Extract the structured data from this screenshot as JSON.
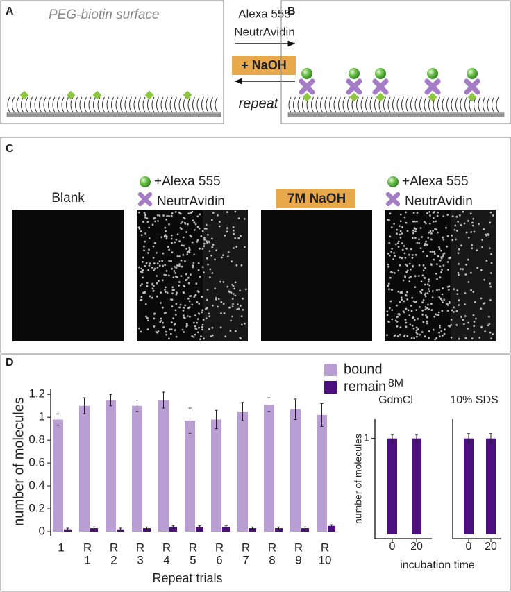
{
  "panel_a": {
    "label": "A",
    "title": "PEG-biotin surface"
  },
  "middle": {
    "line1": "Alexa 555",
    "line2": "NeutrAvidin",
    "box": "+ NaOH",
    "note": "repeat"
  },
  "panel_b": {
    "label": "B"
  },
  "panel_c": {
    "label": "C",
    "images": [
      {
        "caption": [
          "Blank"
        ]
      },
      {
        "caption": [
          "+Alexa 555",
          "NeutrAvidin"
        ]
      },
      {
        "caption": [
          "7M NaOH"
        ]
      },
      {
        "caption": [
          "+Alexa 555",
          "NeutrAvidin"
        ]
      }
    ]
  },
  "panel_d": {
    "label": "D"
  },
  "chart_data": [
    {
      "type": "bar",
      "ylabel": "number of molecules",
      "xlabel": "Repeat trials",
      "categories": [
        [
          "1"
        ],
        [
          "R",
          "1"
        ],
        [
          "R",
          "2"
        ],
        [
          "R",
          "3"
        ],
        [
          "R",
          "4"
        ],
        [
          "R",
          "5"
        ],
        [
          "R",
          "6"
        ],
        [
          "R",
          "7"
        ],
        [
          "R",
          "8"
        ],
        [
          "R",
          "9"
        ],
        [
          "R",
          "10"
        ]
      ],
      "series": [
        {
          "name": "bound",
          "color": "#b89ed3",
          "values": [
            0.98,
            1.1,
            1.15,
            1.1,
            1.15,
            0.97,
            0.98,
            1.05,
            1.11,
            1.07,
            1.02
          ],
          "errors": [
            0.05,
            0.07,
            0.05,
            0.05,
            0.07,
            0.11,
            0.08,
            0.08,
            0.06,
            0.09,
            0.1
          ]
        },
        {
          "name": "remain",
          "color": "#4b0f7e",
          "values": [
            0.02,
            0.03,
            0.02,
            0.03,
            0.04,
            0.04,
            0.04,
            0.03,
            0.03,
            0.03,
            0.05
          ],
          "errors": [
            0.01,
            0.01,
            0.01,
            0.01,
            0.01,
            0.01,
            0.01,
            0.01,
            0.01,
            0.01,
            0.01
          ]
        }
      ],
      "ylim": [
        0,
        1.25
      ],
      "yticks": [
        0,
        0.2,
        0.4,
        0.6,
        0.8,
        1,
        1.2
      ],
      "legend": "top-right"
    },
    {
      "type": "bar",
      "title": [
        "8M",
        "GdmCl"
      ],
      "ylabel": "number of molecules",
      "xlabel": "incubation time",
      "categories": [
        [
          "0"
        ],
        [
          "20"
        ]
      ],
      "series": [
        {
          "color": "#4b0f7e",
          "values": [
            1,
            1
          ],
          "errors": [
            0.04,
            0.04
          ]
        }
      ],
      "ylim": [
        0,
        1.2
      ],
      "yticks": [
        1
      ]
    },
    {
      "type": "bar",
      "title": [
        "10% SDS"
      ],
      "categories": [
        [
          "0"
        ],
        [
          "20"
        ]
      ],
      "series": [
        {
          "color": "#4b0f7e",
          "values": [
            1,
            1
          ],
          "errors": [
            0.05,
            0.05
          ]
        }
      ],
      "ylim": [
        0,
        1.2
      ]
    }
  ]
}
